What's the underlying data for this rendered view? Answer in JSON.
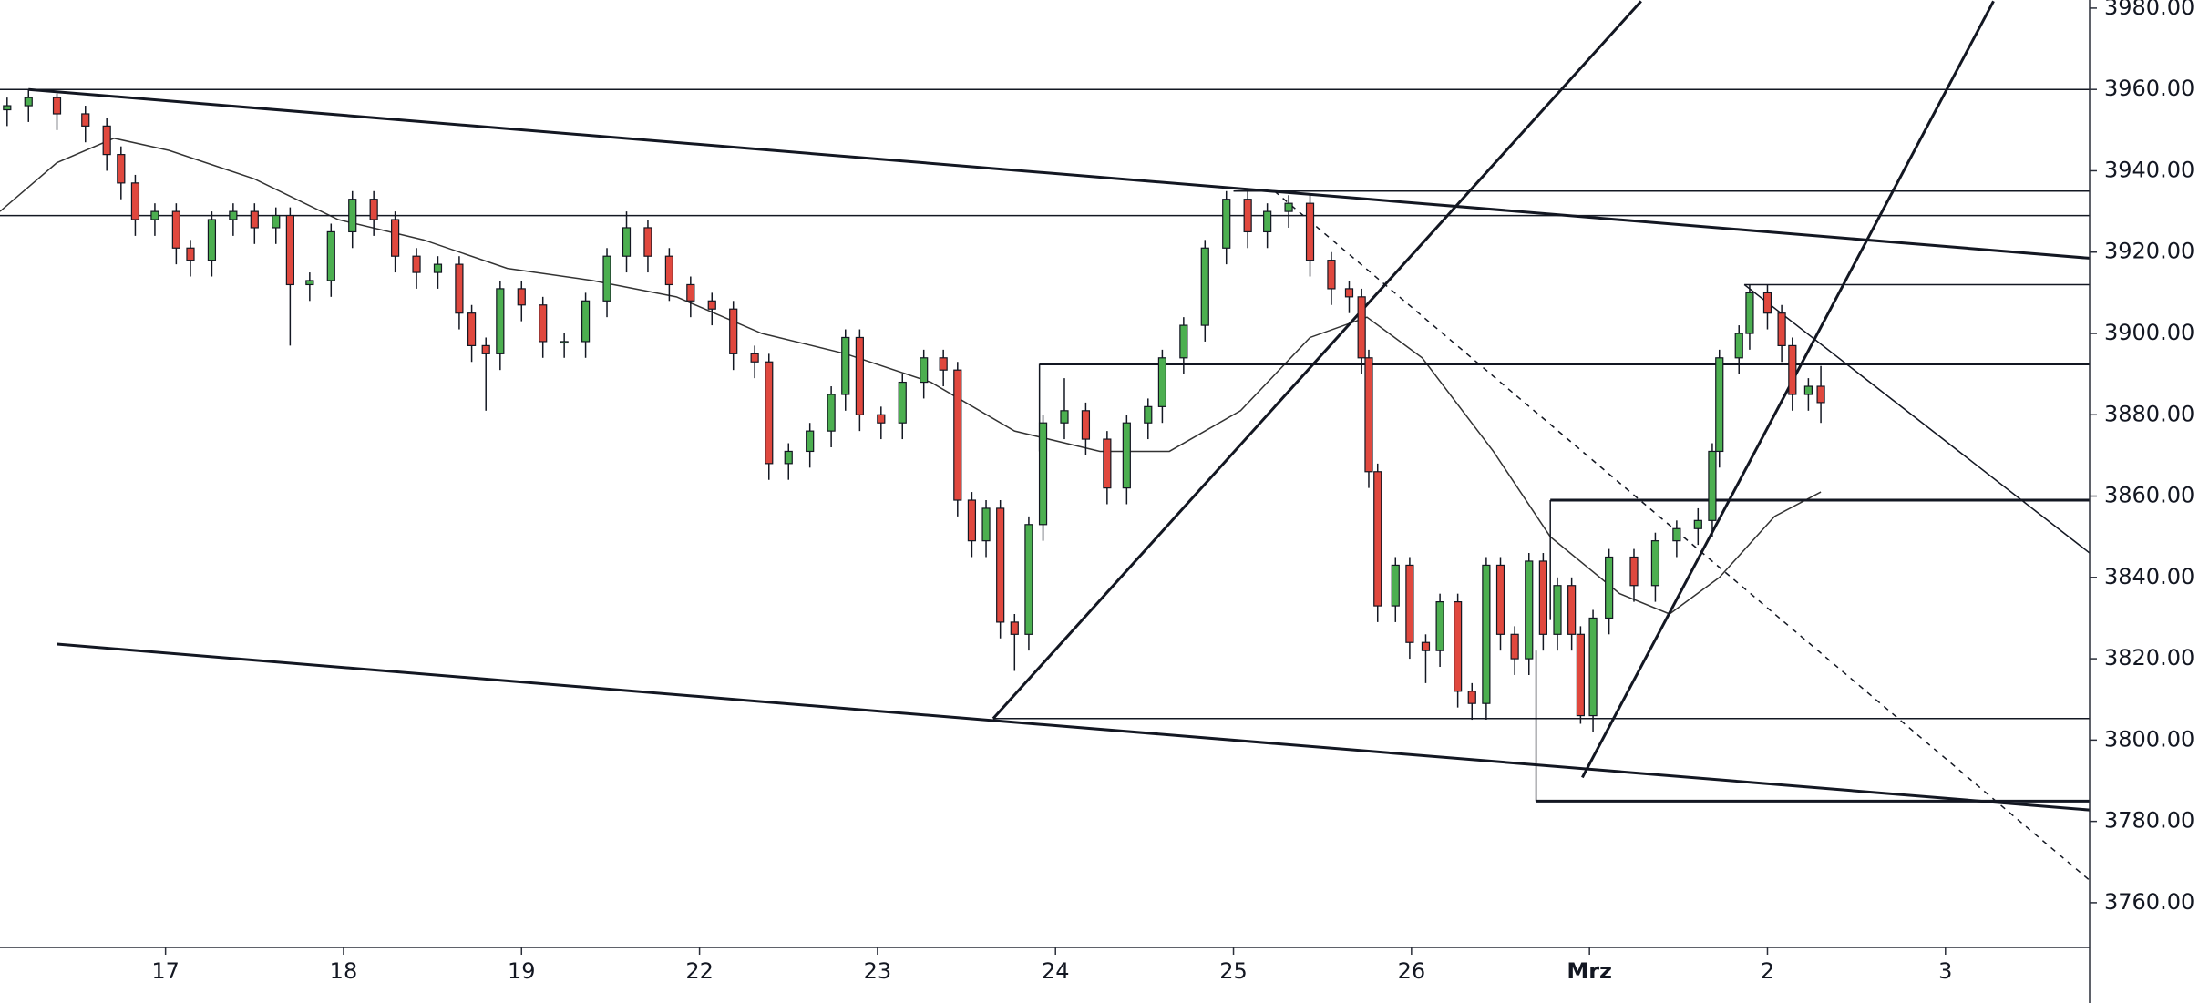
{
  "chart_data": {
    "type": "candlestick",
    "xlim": [
      -0.93,
      10.81
    ],
    "ylim": [
      3749,
      3982
    ],
    "xticks": [
      {
        "value": 0,
        "label": "17"
      },
      {
        "value": 1,
        "label": "18"
      },
      {
        "value": 2,
        "label": "19"
      },
      {
        "value": 3,
        "label": "22"
      },
      {
        "value": 4,
        "label": "23"
      },
      {
        "value": 5,
        "label": "24"
      },
      {
        "value": 6,
        "label": "25"
      },
      {
        "value": 7,
        "label": "26"
      },
      {
        "value": 8,
        "label": "Mrz"
      },
      {
        "value": 9,
        "label": "2"
      },
      {
        "value": 10,
        "label": "3"
      }
    ],
    "yticks": [
      {
        "value": 3760,
        "label": "3760.00"
      },
      {
        "value": 3780,
        "label": "3780.00"
      },
      {
        "value": 3800,
        "label": "3800.00"
      },
      {
        "value": 3820,
        "label": "3820.00"
      },
      {
        "value": 3840,
        "label": "3840.00"
      },
      {
        "value": 3860,
        "label": "3860.00"
      },
      {
        "value": 3880,
        "label": "3880.00"
      },
      {
        "value": 3900,
        "label": "3900.00"
      },
      {
        "value": 3920,
        "label": "3920.00"
      },
      {
        "value": 3940,
        "label": "3940.00"
      },
      {
        "value": 3960,
        "label": "3960.00"
      },
      {
        "value": 3980,
        "label": "3980.00"
      }
    ],
    "up_color": "#4caf50",
    "down_color": "#e0483e",
    "x": [
      -0.89,
      -0.77,
      -0.61,
      -0.45,
      -0.33,
      -0.25,
      -0.17,
      -0.06,
      0.06,
      0.14,
      0.26,
      0.38,
      0.5,
      0.62,
      0.7,
      0.81,
      0.93,
      1.05,
      1.17,
      1.29,
      1.41,
      1.53,
      1.65,
      1.72,
      1.8,
      1.88,
      2.0,
      2.12,
      2.24,
      2.36,
      2.48,
      2.59,
      2.71,
      2.83,
      2.95,
      3.07,
      3.19,
      3.31,
      3.39,
      3.5,
      3.62,
      3.74,
      3.82,
      3.9,
      4.02,
      4.14,
      4.26,
      4.37,
      4.45,
      4.53,
      4.61,
      4.69,
      4.77,
      4.85,
      4.93,
      5.05,
      5.17,
      5.29,
      5.4,
      5.52,
      5.6,
      5.72,
      5.84,
      5.96,
      6.08,
      6.19,
      6.31,
      6.43,
      6.55,
      6.65,
      6.72,
      6.76,
      6.81,
      6.91,
      6.99,
      7.08,
      7.16,
      7.26,
      7.34,
      7.42,
      7.5,
      7.58,
      7.66,
      7.74,
      7.82,
      7.9,
      7.95,
      8.02,
      8.11,
      8.25,
      8.37,
      8.49,
      8.61,
      8.69,
      8.73,
      8.84,
      8.9,
      9.0,
      9.08,
      9.14,
      9.23,
      9.3
    ],
    "open": [
      3955,
      3956,
      3958,
      3954,
      3951,
      3944,
      3937,
      3928,
      3930,
      3921,
      3918,
      3928,
      3930,
      3926,
      3929,
      3912,
      3913,
      3925,
      3933,
      3928,
      3919,
      3915,
      3917,
      3905,
      3897,
      3895,
      3911,
      3907,
      3898,
      3898,
      3908,
      3919,
      3926,
      3919,
      3912,
      3908,
      3906,
      3895,
      3893,
      3868,
      3871,
      3876,
      3885,
      3899,
      3880,
      3878,
      3888,
      3894,
      3891,
      3859,
      3849,
      3857,
      3829,
      3826,
      3853,
      3878,
      3881,
      3874,
      3862,
      3878,
      3882,
      3894,
      3902,
      3921,
      3933,
      3925,
      3930,
      3932,
      3918,
      3911,
      3909,
      3894,
      3866,
      3833,
      3843,
      3824,
      3822,
      3834,
      3812,
      3809,
      3843,
      3826,
      3820,
      3844,
      3826,
      3838,
      3826,
      3806,
      3830,
      3845,
      3838,
      3849,
      3852,
      3854,
      3871,
      3894,
      3900,
      3910,
      3905,
      3897,
      3885,
      3887
    ],
    "high": [
      3958,
      3960,
      3959,
      3956,
      3953,
      3946,
      3939,
      3932,
      3932,
      3923,
      3930,
      3932,
      3932,
      3931,
      3931,
      3915,
      3927,
      3935,
      3935,
      3930,
      3921,
      3919,
      3919,
      3907,
      3899,
      3913,
      3913,
      3909,
      3900,
      3910,
      3921,
      3930,
      3928,
      3921,
      3914,
      3910,
      3908,
      3897,
      3895,
      3873,
      3878,
      3887,
      3901,
      3901,
      3882,
      3890,
      3896,
      3896,
      3893,
      3861,
      3859,
      3859,
      3831,
      3855,
      3880,
      3889,
      3883,
      3876,
      3880,
      3884,
      3896,
      3904,
      3923,
      3935,
      3935,
      3932,
      3934,
      3934,
      3920,
      3913,
      3911,
      3896,
      3868,
      3845,
      3845,
      3826,
      3836,
      3836,
      3814,
      3845,
      3845,
      3828,
      3846,
      3846,
      3840,
      3840,
      3828,
      3832,
      3847,
      3847,
      3851,
      3854,
      3857,
      3873,
      3896,
      3902,
      3912,
      3912,
      3907,
      3899,
      3889,
      3892
    ],
    "low": [
      3951,
      3952,
      3950,
      3947,
      3940,
      3933,
      3924,
      3924,
      3917,
      3914,
      3914,
      3924,
      3922,
      3922,
      3897,
      3908,
      3909,
      3921,
      3924,
      3915,
      3911,
      3911,
      3901,
      3893,
      3881,
      3891,
      3903,
      3894,
      3894,
      3894,
      3904,
      3915,
      3915,
      3908,
      3904,
      3902,
      3891,
      3889,
      3864,
      3864,
      3867,
      3872,
      3881,
      3876,
      3874,
      3874,
      3884,
      3887,
      3855,
      3845,
      3845,
      3825,
      3817,
      3822,
      3849,
      3874,
      3870,
      3858,
      3858,
      3874,
      3878,
      3890,
      3898,
      3917,
      3921,
      3921,
      3926,
      3914,
      3907,
      3905,
      3890,
      3862,
      3829,
      3829,
      3820,
      3814,
      3818,
      3808,
      3805,
      3805,
      3822,
      3816,
      3816,
      3822,
      3822,
      3822,
      3804,
      3802,
      3826,
      3834,
      3834,
      3845,
      3848,
      3850,
      3867,
      3890,
      3896,
      3901,
      3893,
      3881,
      3881,
      3878
    ],
    "close": [
      3956,
      3958,
      3954,
      3951,
      3944,
      3937,
      3928,
      3930,
      3921,
      3918,
      3928,
      3930,
      3926,
      3929,
      3912,
      3913,
      3925,
      3933,
      3928,
      3919,
      3915,
      3917,
      3905,
      3897,
      3895,
      3911,
      3907,
      3898,
      3898,
      3908,
      3919,
      3926,
      3919,
      3912,
      3908,
      3906,
      3895,
      3893,
      3868,
      3871,
      3876,
      3885,
      3899,
      3880,
      3878,
      3888,
      3894,
      3891,
      3859,
      3849,
      3857,
      3829,
      3826,
      3853,
      3878,
      3881,
      3874,
      3862,
      3878,
      3882,
      3894,
      3902,
      3921,
      3933,
      3925,
      3930,
      3932,
      3918,
      3911,
      3909,
      3894,
      3866,
      3833,
      3843,
      3824,
      3822,
      3834,
      3812,
      3809,
      3843,
      3826,
      3820,
      3844,
      3826,
      3838,
      3826,
      3806,
      3830,
      3845,
      3838,
      3849,
      3852,
      3854,
      3871,
      3894,
      3900,
      3910,
      3905,
      3897,
      3885,
      3887,
      3883
    ],
    "moving_average": {
      "color": "#333333",
      "x": [
        -0.93,
        -0.61,
        -0.29,
        0.02,
        0.5,
        0.97,
        1.45,
        1.92,
        2.4,
        2.87,
        3.35,
        3.82,
        4.3,
        4.77,
        5.25,
        5.64,
        6.04,
        6.43,
        6.75,
        7.06,
        7.46,
        7.78,
        8.17,
        8.45,
        8.73,
        9.04,
        9.3
      ],
      "values": [
        3930,
        3942,
        3948,
        3945,
        3938,
        3928,
        3923,
        3916,
        3913,
        3909,
        3900,
        3895,
        3888,
        3876,
        3871,
        3871,
        3881,
        3899,
        3904,
        3894,
        3871,
        3850,
        3836,
        3831,
        3840,
        3855,
        3861
      ]
    },
    "drawings": [
      {
        "x": [
          -0.77,
          10.81
        ],
        "y": [
          3960,
          3918.5
        ],
        "width": 2,
        "dashed": false
      },
      {
        "x": [
          -0.61,
          10.81
        ],
        "y": [
          3823.6,
          3782.8
        ],
        "width": 2,
        "dashed": false
      },
      {
        "x": [
          -0.93,
          10.81
        ],
        "y": [
          3960,
          3960
        ],
        "width": 1,
        "dashed": false
      },
      {
        "x": [
          -0.93,
          10.81
        ],
        "y": [
          3929,
          3929
        ],
        "width": 1,
        "dashed": false
      },
      {
        "x": [
          6.0,
          10.81
        ],
        "y": [
          3935,
          3935
        ],
        "width": 1,
        "dashed": false
      },
      {
        "x": [
          4.91,
          10.81
        ],
        "y": [
          3892.5,
          3892.5
        ],
        "width": 2,
        "dashed": false
      },
      {
        "x": [
          4.91,
          4.91
        ],
        "y": [
          3892.5,
          3871
        ],
        "width": 1,
        "dashed": false
      },
      {
        "x": [
          4.65,
          10.81
        ],
        "y": [
          3805.3,
          3805.3
        ],
        "width": 1,
        "dashed": false
      },
      {
        "x": [
          7.78,
          10.81
        ],
        "y": [
          3859,
          3859
        ],
        "width": 2,
        "dashed": false
      },
      {
        "x": [
          7.78,
          7.78
        ],
        "y": [
          3859,
          3829.5
        ],
        "width": 1,
        "dashed": false
      },
      {
        "x": [
          7.7,
          10.81
        ],
        "y": [
          3785,
          3785
        ],
        "width": 2,
        "dashed": false
      },
      {
        "x": [
          7.7,
          7.7
        ],
        "y": [
          3785,
          3822
        ],
        "width": 1,
        "dashed": false
      },
      {
        "x": [
          8.87,
          10.81
        ],
        "y": [
          3912,
          3912
        ],
        "width": 1,
        "dashed": false
      },
      {
        "x": [
          4.65,
          8.29
        ],
        "y": [
          3805.3,
          3981.7
        ],
        "width": 2,
        "dashed": false
      },
      {
        "x": [
          7.96,
          10.27
        ],
        "y": [
          3790.8,
          3981.7
        ],
        "width": 2,
        "dashed": false
      },
      {
        "x": [
          6.23,
          10.81
        ],
        "y": [
          3935,
          3765.5
        ],
        "width": 1,
        "dashed": true
      },
      {
        "x": [
          8.87,
          10.81
        ],
        "y": [
          3912,
          3846
        ],
        "width": 1,
        "dashed": false
      }
    ]
  }
}
